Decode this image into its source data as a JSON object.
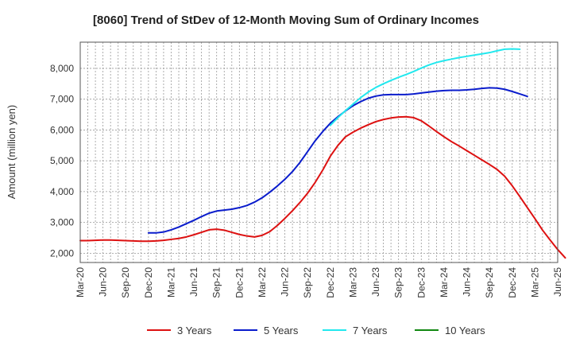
{
  "chart_data": {
    "type": "line",
    "title": "[8060]  Trend of StDev of 12-Month Moving Sum of Ordinary Incomes",
    "xlabel": "",
    "ylabel": "Amount (million yen)",
    "ylim": [
      1700,
      8850
    ],
    "yticks": [
      2000,
      3000,
      4000,
      5000,
      6000,
      7000,
      8000
    ],
    "ytick_labels": [
      "2,000",
      "3,000",
      "4,000",
      "5,000",
      "6,000",
      "7,000",
      "8,000"
    ],
    "x_tick_labels": [
      "Mar-20",
      "Jun-20",
      "Sep-20",
      "Dec-20",
      "Mar-21",
      "Jun-21",
      "Sep-21",
      "Dec-21",
      "Mar-22",
      "Jun-22",
      "Sep-22",
      "Dec-22",
      "Mar-23",
      "Jun-23",
      "Sep-23",
      "Dec-23",
      "Mar-24",
      "Jun-24",
      "Sep-24",
      "Dec-24",
      "Mar-25",
      "Jun-25"
    ],
    "x_start": "Mar-20",
    "x_end": "Jun-25",
    "grid": true,
    "legend_position": "bottom",
    "series": [
      {
        "name": "3 Years",
        "color": "#dd1111",
        "start_month_index": 0,
        "values": [
          2410,
          2410,
          2420,
          2430,
          2430,
          2420,
          2410,
          2400,
          2390,
          2390,
          2400,
          2420,
          2450,
          2480,
          2530,
          2600,
          2680,
          2760,
          2780,
          2750,
          2680,
          2610,
          2560,
          2530,
          2580,
          2700,
          2900,
          3130,
          3380,
          3650,
          3950,
          4300,
          4700,
          5150,
          5500,
          5780,
          5930,
          6060,
          6170,
          6270,
          6340,
          6390,
          6420,
          6430,
          6400,
          6300,
          6130,
          5950,
          5780,
          5620,
          5480,
          5330,
          5180,
          5030,
          4880,
          4720,
          4500,
          4190,
          3840,
          3480,
          3120,
          2750,
          2430,
          2120,
          1850
        ]
      },
      {
        "name": "5 Years",
        "color": "#0a1ccc",
        "start_month_index": 9,
        "values": [
          2660,
          2660,
          2690,
          2760,
          2850,
          2960,
          3070,
          3190,
          3300,
          3370,
          3400,
          3430,
          3480,
          3550,
          3660,
          3800,
          3980,
          4180,
          4400,
          4650,
          4950,
          5300,
          5650,
          5950,
          6220,
          6430,
          6620,
          6790,
          6920,
          7030,
          7100,
          7140,
          7150,
          7150,
          7150,
          7170,
          7200,
          7230,
          7260,
          7280,
          7290,
          7290,
          7300,
          7320,
          7350,
          7370,
          7360,
          7320,
          7250,
          7170,
          7090
        ]
      },
      {
        "name": "7 Years",
        "color": "#22e8ee",
        "start_month_index": 33,
        "values": [
          6150,
          6400,
          6630,
          6840,
          7050,
          7230,
          7380,
          7500,
          7610,
          7710,
          7800,
          7900,
          8010,
          8110,
          8190,
          8250,
          8300,
          8350,
          8390,
          8430,
          8470,
          8510,
          8570,
          8620,
          8630,
          8620
        ]
      },
      {
        "name": "10 Years",
        "color": "#118811",
        "start_month_index": 0,
        "values": []
      }
    ]
  }
}
